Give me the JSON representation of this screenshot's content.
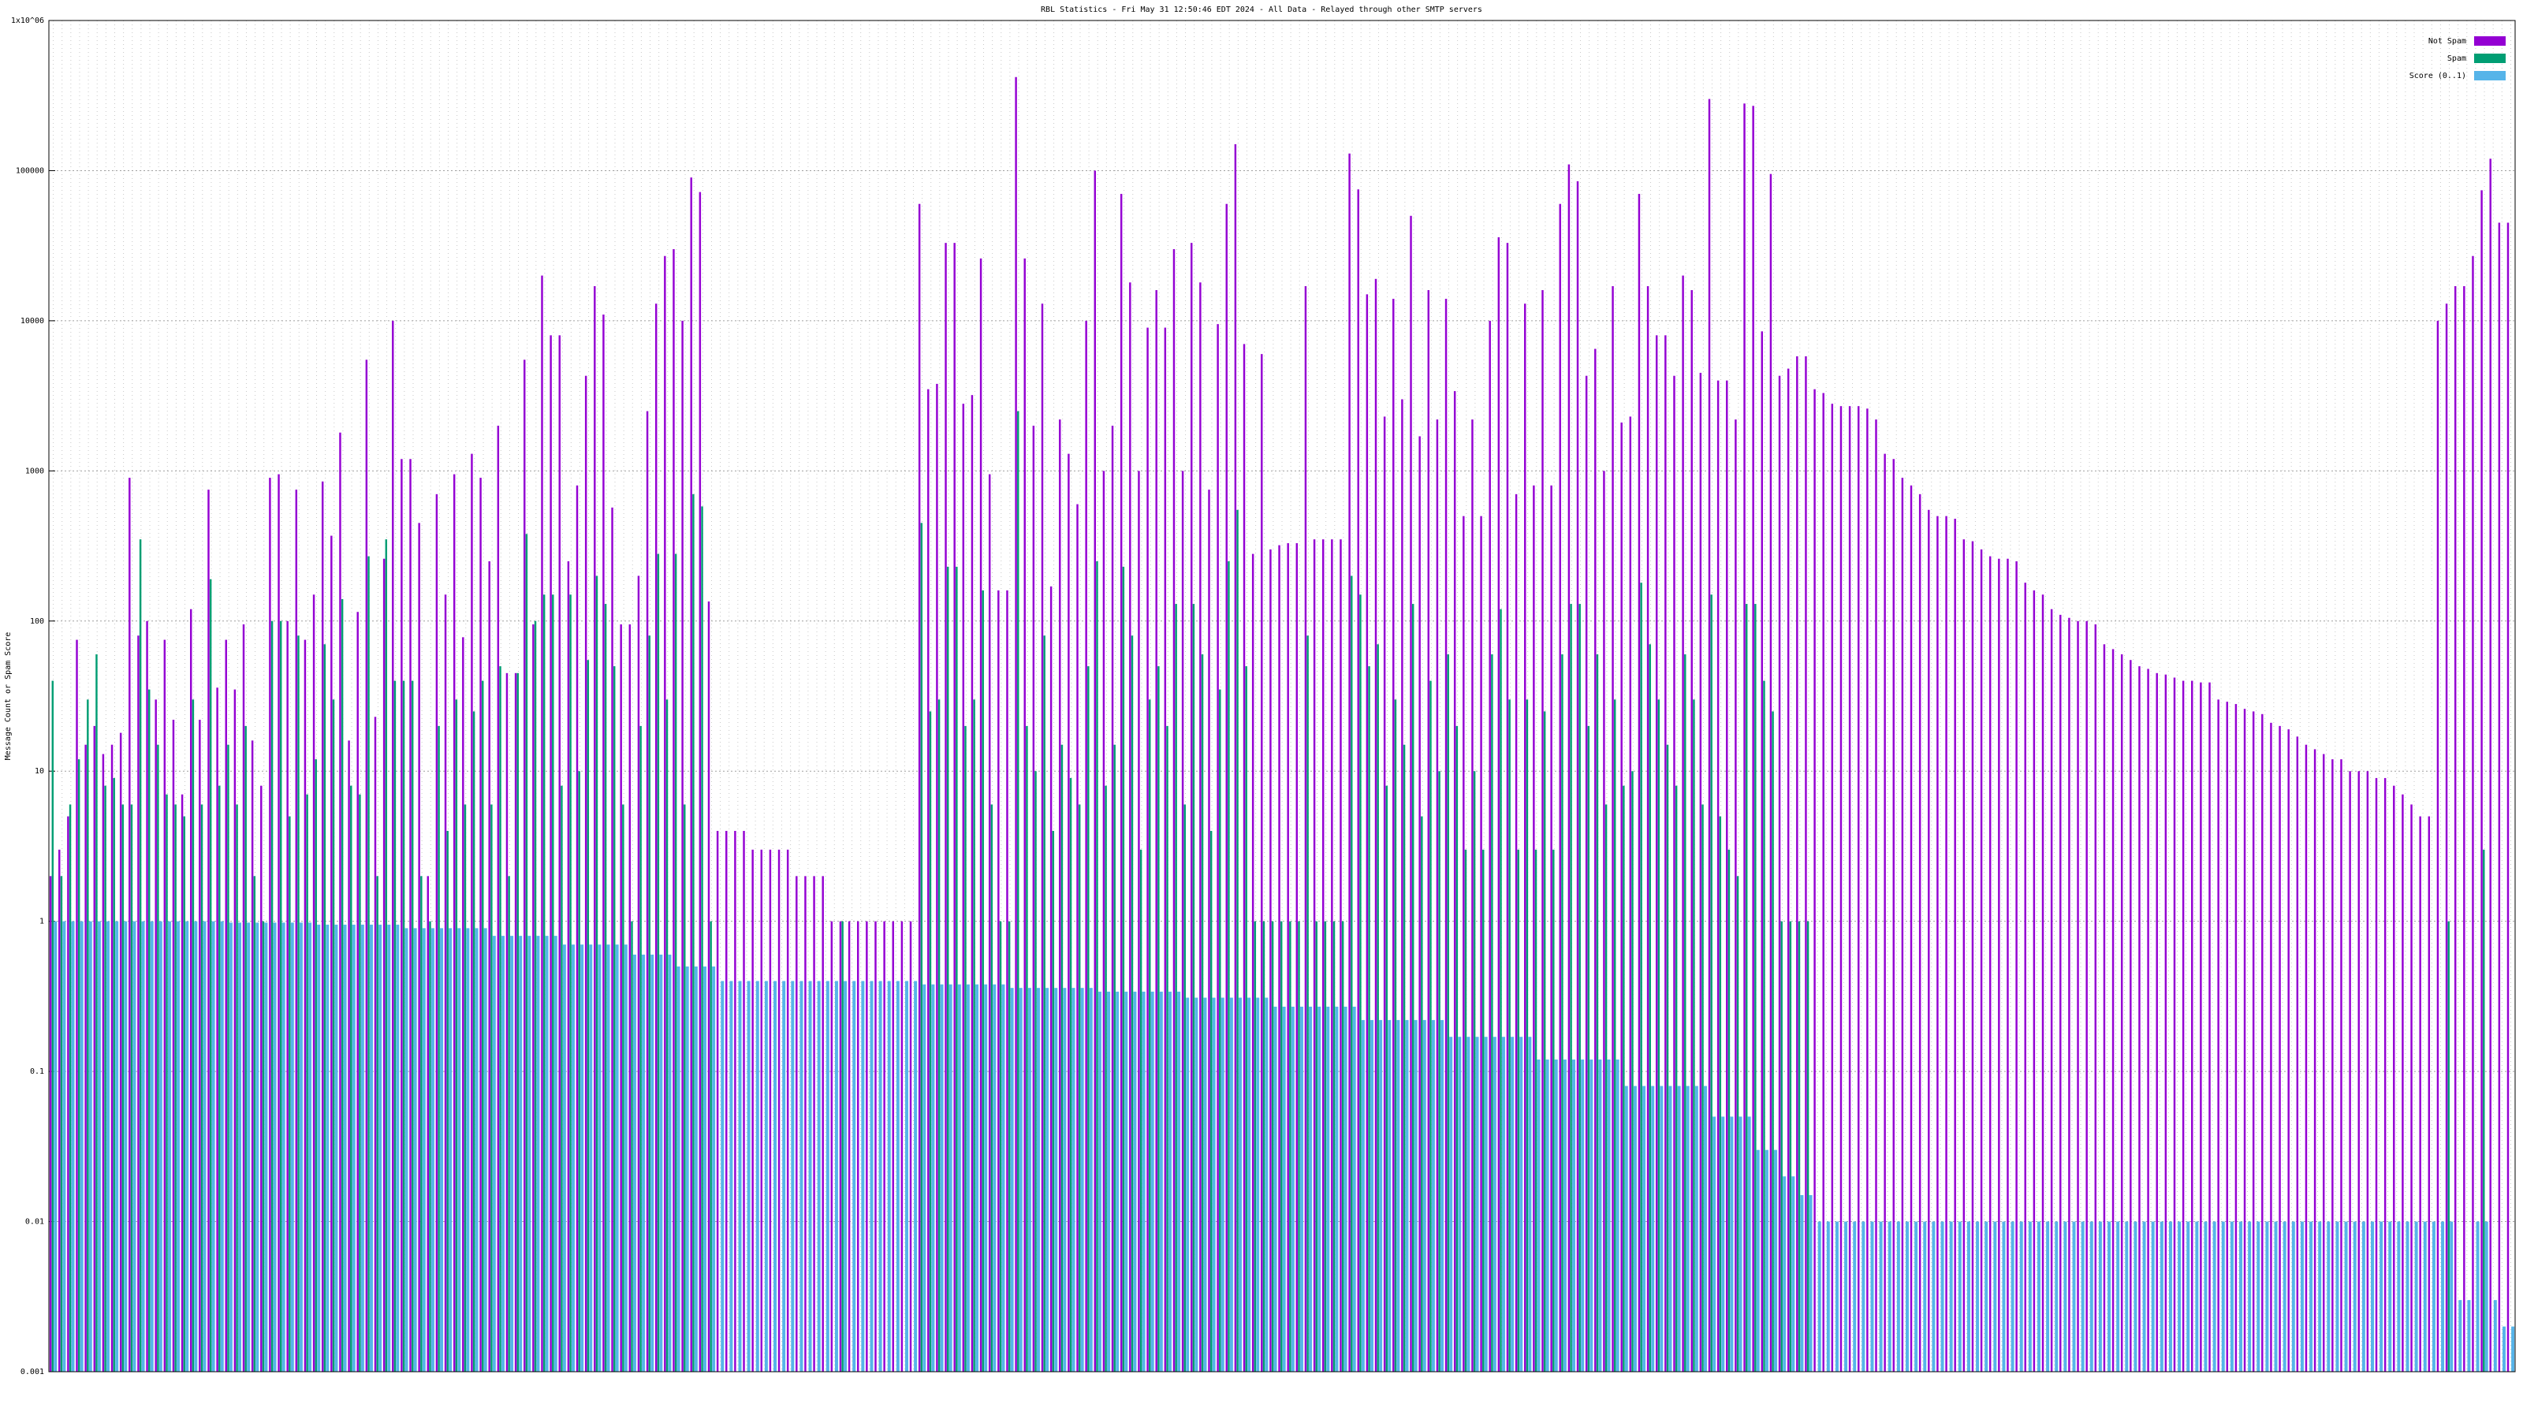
{
  "chart_data": {
    "type": "bar",
    "title": "RBL Statistics - Fri May 31 12:50:46 EDT 2024 - All Data - Relayed through other SMTP servers",
    "y_label": "Message Count or Spam Score",
    "log_y": true,
    "grid": true,
    "legend": "upper right",
    "ylim": [
      0.001,
      1000000
    ],
    "yticks": [
      0.001,
      0.01,
      0.1,
      1,
      10,
      100,
      1000,
      10000,
      100000,
      {
        "value": 1000000,
        "label": "1x10^06"
      }
    ],
    "series": [
      {
        "name": "Not Spam",
        "color": "#9400d3",
        "values": [
          2,
          3,
          5,
          75,
          15,
          20,
          13,
          15,
          18,
          900,
          80,
          100,
          30,
          75,
          22,
          7,
          120,
          22,
          750,
          36,
          75,
          35,
          95,
          16,
          8,
          900,
          950,
          100,
          750,
          75,
          150,
          850,
          370,
          1800,
          16,
          115,
          5500,
          23,
          260,
          10000,
          1200,
          1200,
          450,
          2,
          700,
          150,
          950,
          78,
          1300,
          900,
          250,
          2000,
          45,
          45,
          5500,
          95,
          20000,
          8000,
          8000,
          250,
          800,
          4300,
          17000,
          11000,
          570,
          95,
          95,
          200,
          2500,
          13000,
          27000,
          30000,
          10000,
          90000,
          72000,
          135,
          4,
          4,
          4,
          4,
          3,
          3,
          3,
          3,
          3,
          2,
          2,
          2,
          2,
          1,
          1,
          1,
          1,
          1,
          1,
          1,
          1,
          1,
          1,
          60000,
          3500,
          3800,
          33000,
          33000,
          2800,
          3200,
          26000,
          950,
          160,
          160,
          420000,
          26000,
          2000,
          13000,
          170,
          2200,
          1300,
          600,
          10000,
          100000,
          1000,
          2000,
          70000,
          18000,
          1000,
          9000,
          16000,
          9000,
          30000,
          1000,
          33000,
          18000,
          750,
          9500,
          60000,
          150000,
          7000,
          280,
          6000,
          300,
          320,
          330,
          330,
          17000,
          350,
          350,
          350,
          350,
          130000,
          75000,
          15000,
          19000,
          2300,
          14000,
          3000,
          50000,
          1700,
          16000,
          2200,
          14000,
          3400,
          500,
          2200,
          500,
          10000,
          36000,
          33000,
          700,
          13000,
          800,
          16000,
          800,
          60000,
          110000,
          85000,
          4300,
          6500,
          1000,
          17000,
          2100,
          2300,
          70000,
          17000,
          8000,
          8000,
          4300,
          20000,
          16000,
          4500,
          300000,
          4000,
          4000,
          2200,
          280000,
          270000,
          8500,
          95000,
          4300,
          4800,
          5800,
          5800,
          3500,
          3300,
          2800,
          2700,
          2700,
          2700,
          2600,
          2200,
          1300,
          1200,
          900,
          800,
          700,
          550,
          500,
          500,
          480,
          350,
          340,
          300,
          270,
          260,
          260,
          250,
          180,
          160,
          150,
          120,
          110,
          105,
          100,
          100,
          95,
          70,
          65,
          60,
          55,
          50,
          48,
          45,
          44,
          42,
          40,
          40,
          39,
          39,
          30,
          29,
          28,
          26,
          25,
          24,
          21,
          20,
          19,
          17,
          15,
          14,
          13,
          12,
          12,
          10,
          10,
          10,
          9,
          9,
          8,
          7,
          6,
          5,
          5,
          10000,
          13000,
          17000,
          17000,
          27000,
          74000,
          120000,
          45000,
          45000
        ]
      },
      {
        "name": "Spam",
        "color": "#009e73",
        "values": [
          40,
          2,
          6,
          12,
          30,
          60,
          8,
          9,
          6,
          6,
          350,
          35,
          15,
          7,
          6,
          5,
          30,
          6,
          190,
          8,
          15,
          6,
          20,
          2,
          1,
          100,
          100,
          5,
          80,
          7,
          12,
          70,
          30,
          140,
          8,
          7,
          270,
          2,
          350,
          40,
          40,
          40,
          2,
          1,
          20,
          4,
          30,
          6,
          25,
          40,
          6,
          50,
          2,
          45,
          380,
          100,
          150,
          150,
          8,
          150,
          10,
          55,
          200,
          130,
          50,
          6,
          1,
          20,
          80,
          280,
          30,
          280,
          6,
          700,
          580,
          1,
          null,
          null,
          null,
          null,
          null,
          null,
          null,
          null,
          null,
          null,
          null,
          null,
          null,
          null,
          1,
          null,
          null,
          null,
          null,
          null,
          null,
          null,
          null,
          450,
          25,
          30,
          230,
          230,
          20,
          30,
          160,
          6,
          1,
          1,
          2500,
          20,
          10,
          80,
          4,
          15,
          9,
          6,
          50,
          250,
          8,
          15,
          230,
          80,
          3,
          30,
          50,
          20,
          130,
          6,
          130,
          60,
          4,
          35,
          250,
          550,
          50,
          1,
          1,
          1,
          1,
          1,
          1,
          80,
          1,
          1,
          1,
          1,
          200,
          150,
          50,
          70,
          8,
          30,
          15,
          130,
          5,
          40,
          10,
          60,
          20,
          3,
          10,
          3,
          60,
          120,
          30,
          3,
          30,
          3,
          25,
          3,
          60,
          130,
          130,
          20,
          60,
          6,
          30,
          8,
          10,
          180,
          70,
          30,
          15,
          8,
          60,
          30,
          6,
          150,
          5,
          3,
          2,
          130,
          130,
          40,
          25,
          1,
          1,
          1,
          1,
          null,
          null,
          null,
          null,
          null,
          null,
          null,
          null,
          null,
          null,
          null,
          null,
          null,
          null,
          null,
          null,
          null,
          null,
          null,
          null,
          null,
          null,
          null,
          null,
          null,
          null,
          null,
          null,
          null,
          null,
          null,
          null,
          null,
          null,
          null,
          null,
          null,
          null,
          null,
          null,
          null,
          null,
          null,
          null,
          null,
          null,
          null,
          null,
          null,
          null,
          null,
          null,
          null,
          null,
          null,
          null,
          null,
          null,
          null,
          null,
          null,
          null,
          null,
          null,
          null,
          null,
          null,
          null,
          null,
          null,
          null,
          null,
          1,
          null,
          null,
          null,
          3,
          null,
          null,
          null
        ]
      },
      {
        "name": "Score (0..1)",
        "color": "#56b4e9",
        "values": [
          1,
          1,
          1,
          1,
          1,
          1,
          1,
          1,
          1,
          1,
          1,
          1,
          1,
          1,
          1,
          1,
          1,
          1,
          1,
          1,
          0.98,
          0.98,
          0.98,
          0.98,
          0.98,
          0.98,
          0.98,
          0.98,
          0.98,
          0.98,
          0.95,
          0.95,
          0.95,
          0.95,
          0.95,
          0.95,
          0.95,
          0.95,
          0.95,
          0.95,
          0.9,
          0.9,
          0.9,
          0.9,
          0.9,
          0.9,
          0.9,
          0.9,
          0.9,
          0.9,
          0.8,
          0.8,
          0.8,
          0.8,
          0.8,
          0.8,
          0.8,
          0.8,
          0.7,
          0.7,
          0.7,
          0.7,
          0.7,
          0.7,
          0.7,
          0.7,
          0.6,
          0.6,
          0.6,
          0.6,
          0.6,
          0.5,
          0.5,
          0.5,
          0.5,
          0.5,
          0.4,
          0.4,
          0.4,
          0.4,
          0.4,
          0.4,
          0.4,
          0.4,
          0.4,
          0.4,
          0.4,
          0.4,
          0.4,
          0.4,
          0.4,
          0.4,
          0.4,
          0.4,
          0.4,
          0.4,
          0.4,
          0.4,
          0.4,
          0.38,
          0.38,
          0.38,
          0.38,
          0.38,
          0.38,
          0.38,
          0.38,
          0.38,
          0.38,
          0.36,
          0.36,
          0.36,
          0.36,
          0.36,
          0.36,
          0.36,
          0.36,
          0.36,
          0.36,
          0.34,
          0.34,
          0.34,
          0.34,
          0.34,
          0.34,
          0.34,
          0.34,
          0.34,
          0.34,
          0.31,
          0.31,
          0.31,
          0.31,
          0.31,
          0.31,
          0.31,
          0.31,
          0.31,
          0.31,
          0.27,
          0.27,
          0.27,
          0.27,
          0.27,
          0.27,
          0.27,
          0.27,
          0.27,
          0.27,
          0.22,
          0.22,
          0.22,
          0.22,
          0.22,
          0.22,
          0.22,
          0.22,
          0.22,
          0.22,
          0.17,
          0.17,
          0.17,
          0.17,
          0.17,
          0.17,
          0.17,
          0.17,
          0.17,
          0.17,
          0.12,
          0.12,
          0.12,
          0.12,
          0.12,
          0.12,
          0.12,
          0.12,
          0.12,
          0.12,
          0.08,
          0.08,
          0.08,
          0.08,
          0.08,
          0.08,
          0.08,
          0.08,
          0.08,
          0.08,
          0.05,
          0.05,
          0.05,
          0.05,
          0.05,
          0.03,
          0.03,
          0.03,
          0.02,
          0.02,
          0.015,
          0.015,
          0.01,
          0.01,
          0.01,
          0.01,
          0.01,
          0.01,
          0.01,
          0.01,
          0.01,
          0.01,
          0.01,
          0.01,
          0.01,
          0.01,
          0.01,
          0.01,
          0.01,
          0.01,
          0.01,
          0.01,
          0.01,
          0.01,
          0.01,
          0.01,
          0.01,
          0.01,
          0.01,
          0.01,
          0.01,
          0.01,
          0.01,
          0.01,
          0.01,
          0.01,
          0.01,
          0.01,
          0.01,
          0.01,
          0.01,
          0.01,
          0.01,
          0.01,
          0.01,
          0.01,
          0.01,
          0.01,
          0.01,
          0.01,
          0.01,
          0.01,
          0.01,
          0.01,
          0.01,
          0.01,
          0.01,
          0.01,
          0.01,
          0.01,
          0.01,
          0.01,
          0.01,
          0.01,
          0.01,
          0.01,
          0.01,
          0.01,
          0.01,
          0.01,
          0.01,
          0.01,
          0.01,
          0.01,
          0.01,
          0.003,
          0.003,
          0.01,
          0.01,
          0.003,
          0.002,
          0.002
        ]
      }
    ]
  }
}
